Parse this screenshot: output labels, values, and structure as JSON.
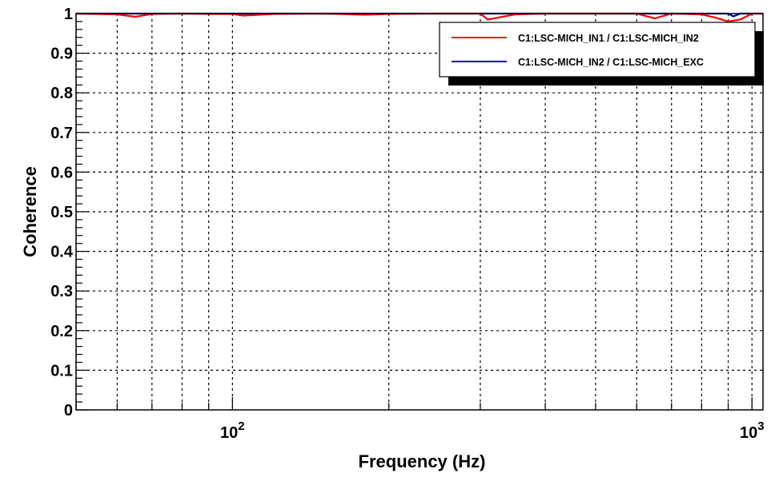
{
  "chart_data": {
    "type": "line",
    "xlabel": "Frequency (Hz)",
    "ylabel": "Coherence",
    "x_scale": "log",
    "xlim": [
      50,
      1050
    ],
    "ylim": [
      0,
      1
    ],
    "x_major_ticks": [
      {
        "value": 100,
        "base": "10",
        "exp": "2"
      },
      {
        "value": 1000,
        "base": "10",
        "exp": "3"
      }
    ],
    "y_ticks": [
      {
        "value": 0,
        "label": "0"
      },
      {
        "value": 0.1,
        "label": "0.1"
      },
      {
        "value": 0.2,
        "label": "0.2"
      },
      {
        "value": 0.3,
        "label": "0.3"
      },
      {
        "value": 0.4,
        "label": "0.4"
      },
      {
        "value": 0.5,
        "label": "0.5"
      },
      {
        "value": 0.6,
        "label": "0.6"
      },
      {
        "value": 0.7,
        "label": "0.7"
      },
      {
        "value": 0.8,
        "label": "0.8"
      },
      {
        "value": 0.9,
        "label": "0.9"
      },
      {
        "value": 1,
        "label": "1"
      }
    ],
    "grid": true,
    "legend_position": "top-right",
    "series": [
      {
        "name": "C1:LSC-MICH_IN1 / C1:LSC-MICH_IN2",
        "color": "#ff0000",
        "x": [
          50,
          60,
          65,
          70,
          80,
          90,
          100,
          105,
          120,
          150,
          180,
          200,
          250,
          300,
          310,
          350,
          400,
          500,
          600,
          650,
          700,
          800,
          850,
          900,
          950,
          1000,
          1050
        ],
        "y": [
          1.0,
          0.998,
          0.992,
          0.999,
          1.0,
          0.999,
          0.999,
          0.995,
          0.999,
          1.0,
          0.997,
          0.999,
          1.0,
          1.0,
          0.985,
          0.998,
          1.0,
          1.0,
          1.0,
          0.988,
          1.0,
          0.998,
          0.99,
          0.98,
          0.985,
          1.0,
          1.0
        ]
      },
      {
        "name": "C1:LSC-MICH_IN2 / C1:LSC-MICH_EXC",
        "color": "#0000cc",
        "x": [
          50,
          100,
          200,
          300,
          400,
          500,
          600,
          700,
          800,
          900,
          920,
          950,
          1000,
          1050
        ],
        "y": [
          1.0,
          1.0,
          1.0,
          1.0,
          1.0,
          1.0,
          1.0,
          1.0,
          1.0,
          1.0,
          0.993,
          1.0,
          1.0,
          1.0
        ]
      }
    ]
  }
}
